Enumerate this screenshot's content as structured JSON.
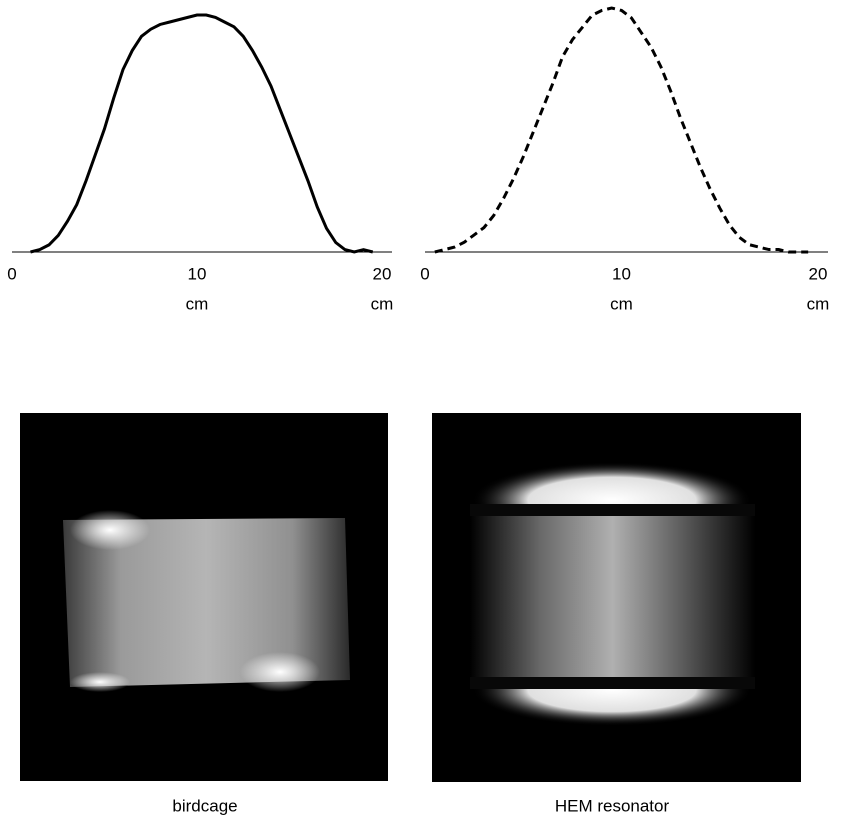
{
  "chart_data": [
    {
      "type": "line",
      "xlabel": "cm",
      "xlim": [
        0,
        20
      ],
      "xticks": [
        0,
        10,
        20
      ],
      "ylim": [
        0,
        1
      ],
      "x": [
        1,
        1.5,
        2,
        2.5,
        3,
        3.5,
        4,
        4.5,
        5,
        5.5,
        6,
        6.5,
        7,
        7.5,
        8,
        8.5,
        9,
        9.5,
        10,
        10.5,
        11,
        11.5,
        12,
        12.5,
        13,
        13.5,
        14,
        14.5,
        15,
        15.5,
        16,
        16.5,
        17,
        17.5,
        18,
        18.5,
        19,
        19.5
      ],
      "series": [
        {
          "color": "#000000",
          "linestyle": "solid",
          "values": [
            0,
            0.01,
            0.03,
            0.07,
            0.13,
            0.2,
            0.3,
            0.41,
            0.52,
            0.65,
            0.77,
            0.85,
            0.91,
            0.94,
            0.96,
            0.97,
            0.98,
            0.99,
            1,
            1,
            0.99,
            0.97,
            0.95,
            0.91,
            0.85,
            0.78,
            0.7,
            0.6,
            0.5,
            0.4,
            0.3,
            0.19,
            0.1,
            0.04,
            0.01,
            0,
            0.01,
            0
          ]
        }
      ]
    },
    {
      "type": "line",
      "xlabel": "cm",
      "xlim": [
        0,
        20
      ],
      "xticks": [
        0,
        10,
        20
      ],
      "ylim": [
        0,
        1
      ],
      "x": [
        0.5,
        1,
        1.5,
        2,
        2.5,
        3,
        3.5,
        4,
        4.5,
        5,
        5.5,
        6,
        6.5,
        7,
        7.5,
        8,
        8.5,
        9,
        9.5,
        10,
        10.5,
        11,
        11.5,
        12,
        12.5,
        13,
        13.5,
        14,
        14.5,
        15,
        15.5,
        16,
        16.5,
        17,
        17.5,
        18,
        18.5,
        19,
        19.5
      ],
      "series": [
        {
          "color": "#000000",
          "linestyle": "dashed",
          "values": [
            0,
            0.01,
            0.02,
            0.04,
            0.07,
            0.1,
            0.15,
            0.22,
            0.3,
            0.39,
            0.49,
            0.59,
            0.69,
            0.8,
            0.87,
            0.92,
            0.97,
            0.99,
            1,
            0.99,
            0.96,
            0.9,
            0.84,
            0.76,
            0.66,
            0.55,
            0.45,
            0.35,
            0.26,
            0.18,
            0.11,
            0.06,
            0.03,
            0.02,
            0.01,
            0.01,
            0,
            0,
            0
          ]
        }
      ]
    }
  ],
  "images": [
    {
      "caption": "birdcage"
    },
    {
      "caption": "HEM resonator"
    }
  ]
}
